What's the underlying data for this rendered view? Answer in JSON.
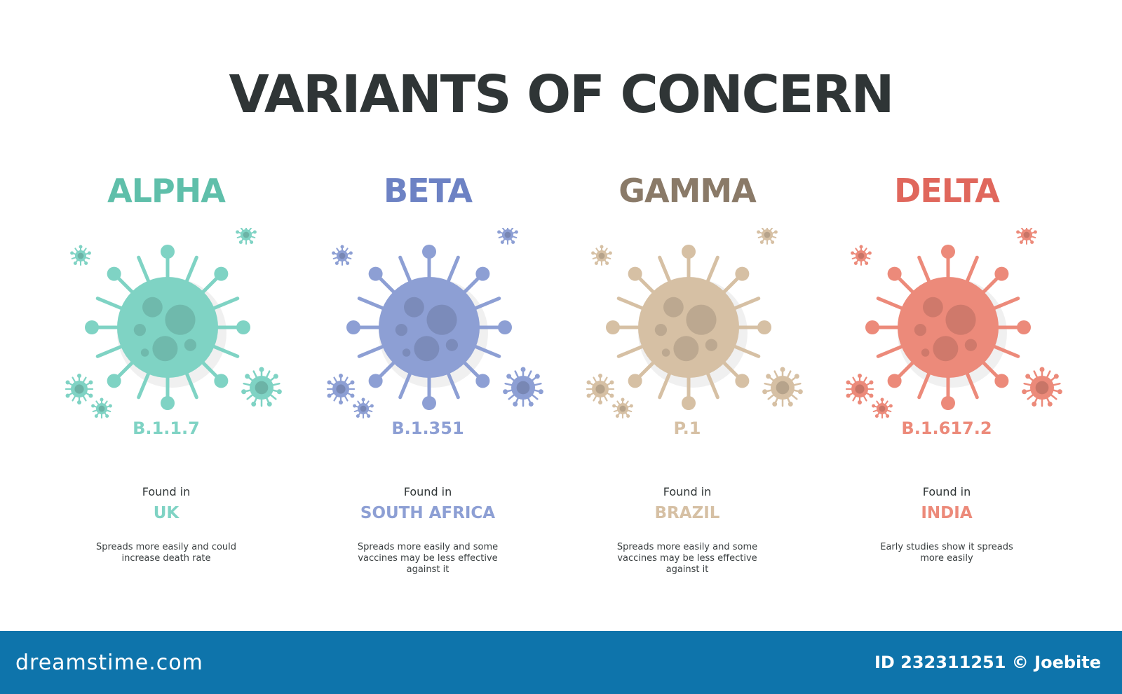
{
  "title": "VARIANTS OF CONCERN",
  "variants": [
    {
      "name": "ALPHA",
      "lineage": "B.1.1.7",
      "found_label": "Found in",
      "country": "UK",
      "description": "Spreads more easily and could increase death rate",
      "color": "#5fbfaa",
      "light_color": "#7fd3c4",
      "icon": "virus-icon"
    },
    {
      "name": "BETA",
      "lineage": "B.1.351",
      "found_label": "Found in",
      "country": "SOUTH AFRICA",
      "description": "Spreads more easily and some vaccines may be less effective against it",
      "color": "#6d82c4",
      "light_color": "#8d9fd4",
      "icon": "virus-icon"
    },
    {
      "name": "GAMMA",
      "lineage": "P.1",
      "found_label": "Found in",
      "country": "BRAZIL",
      "description": "Spreads more easily and some vaccines may be less effective against it",
      "color": "#8a7a68",
      "light_color": "#d6c0a4",
      "icon": "virus-icon"
    },
    {
      "name": "DELTA",
      "lineage": "B.1.617.2",
      "found_label": "Found in",
      "country": "INDIA",
      "description": "Early studies show it spreads more easily",
      "color": "#e0675c",
      "light_color": "#ec8a7a",
      "icon": "virus-icon"
    }
  ],
  "footer": {
    "logo_text": "dreamstime.com",
    "id_text": "ID 232311251 © Joebite",
    "background": "#0e74ab"
  }
}
